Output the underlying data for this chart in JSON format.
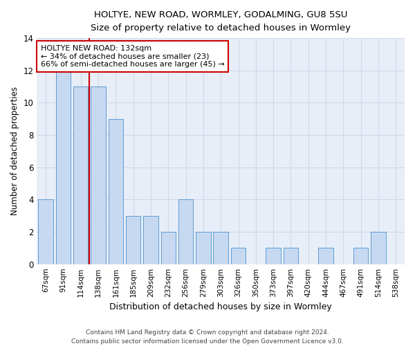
{
  "title_line1": "HOLTYE, NEW ROAD, WORMLEY, GODALMING, GU8 5SU",
  "title_line2": "Size of property relative to detached houses in Wormley",
  "xlabel": "Distribution of detached houses by size in Wormley",
  "ylabel": "Number of detached properties",
  "categories": [
    "67sqm",
    "91sqm",
    "114sqm",
    "138sqm",
    "161sqm",
    "185sqm",
    "209sqm",
    "232sqm",
    "256sqm",
    "279sqm",
    "303sqm",
    "326sqm",
    "350sqm",
    "373sqm",
    "397sqm",
    "420sqm",
    "444sqm",
    "467sqm",
    "491sqm",
    "514sqm",
    "538sqm"
  ],
  "values": [
    4,
    12,
    11,
    11,
    9,
    3,
    3,
    2,
    4,
    2,
    2,
    1,
    0,
    1,
    1,
    0,
    1,
    0,
    1,
    2,
    0
  ],
  "bar_color": "#c7d9f0",
  "bar_edge_color": "#5b9bd5",
  "grid_color": "#d0d8e8",
  "background_color": "#e8eef7",
  "vline_color": "#cc0000",
  "annotation_title": "HOLTYE NEW ROAD: 132sqm",
  "annotation_line1": "← 34% of detached houses are smaller (23)",
  "annotation_line2": "66% of semi-detached houses are larger (45) →",
  "annotation_box_color": "#cc0000",
  "ylim": [
    0,
    14
  ],
  "yticks": [
    0,
    2,
    4,
    6,
    8,
    10,
    12,
    14
  ],
  "footer_line1": "Contains HM Land Registry data © Crown copyright and database right 2024.",
  "footer_line2": "Contains public sector information licensed under the Open Government Licence v3.0."
}
